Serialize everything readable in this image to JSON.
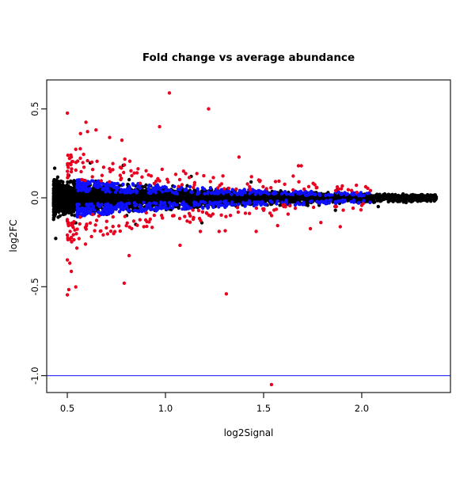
{
  "figure": {
    "title": "Fold change vs average abundance",
    "xlabel": "log2Signal",
    "ylabel": "log2FC"
  },
  "chart_data": {
    "type": "scatter",
    "title": "Fold change vs average abundance",
    "xlabel": "log2Signal",
    "ylabel": "log2FC",
    "xlim": [
      0.395,
      2.452
    ],
    "ylim": [
      -1.095,
      0.663
    ],
    "x_ticks": [
      0.5,
      1.0,
      1.5,
      2.0
    ],
    "x_tick_labels": [
      "0.5",
      "1.0",
      "1.5",
      "2.0"
    ],
    "y_ticks": [
      0.5,
      0.0,
      -0.5,
      -1.0
    ],
    "y_tick_labels": [
      "0.5",
      "0.0",
      "-0.5",
      "-1.0"
    ],
    "grid": false,
    "legend": null,
    "box_color": "#1a1a1a",
    "hline": {
      "y": -1.0,
      "color": "#3a3aff"
    },
    "point_radius_px": 2.2,
    "seed": 1234,
    "envelope": {
      "a": 0.085,
      "x0": 0.4,
      "tau": 0.95,
      "c": 0.007
    },
    "series": [
      {
        "name": "black-points",
        "color": "#000000",
        "n": 4000,
        "x_min": 0.43,
        "x_span": 1.95,
        "x_pow": 1.75,
        "y_mode": "bell",
        "y_scale": 1.5,
        "tail_prob": 0.02,
        "tail_boost": 2.5
      },
      {
        "name": "blue-points",
        "color": "#0f0fff",
        "n": 650,
        "x_min": 0.55,
        "x_span": 1.5,
        "x_pow": 1.8,
        "y_mode": "band",
        "band_lo": 0.45,
        "band_hi": 1.35,
        "tail_prob": 0.0,
        "tail_boost": 1.0
      },
      {
        "name": "red-points",
        "color": "#e8001f",
        "n": 270,
        "x_min": 0.5,
        "x_span": 1.55,
        "x_pow": 2.2,
        "y_mode": "band",
        "band_lo": 1.25,
        "band_hi": 3.1,
        "tail_prob": 0.16,
        "tail_boost": 2.2
      }
    ],
    "outliers": {
      "color": "#e8001f",
      "points": [
        [
          1.02,
          0.59
        ],
        [
          1.22,
          0.5
        ],
        [
          0.97,
          0.4
        ],
        [
          1.54,
          -1.05
        ],
        [
          1.31,
          -0.54
        ],
        [
          0.79,
          -0.48
        ]
      ]
    }
  }
}
